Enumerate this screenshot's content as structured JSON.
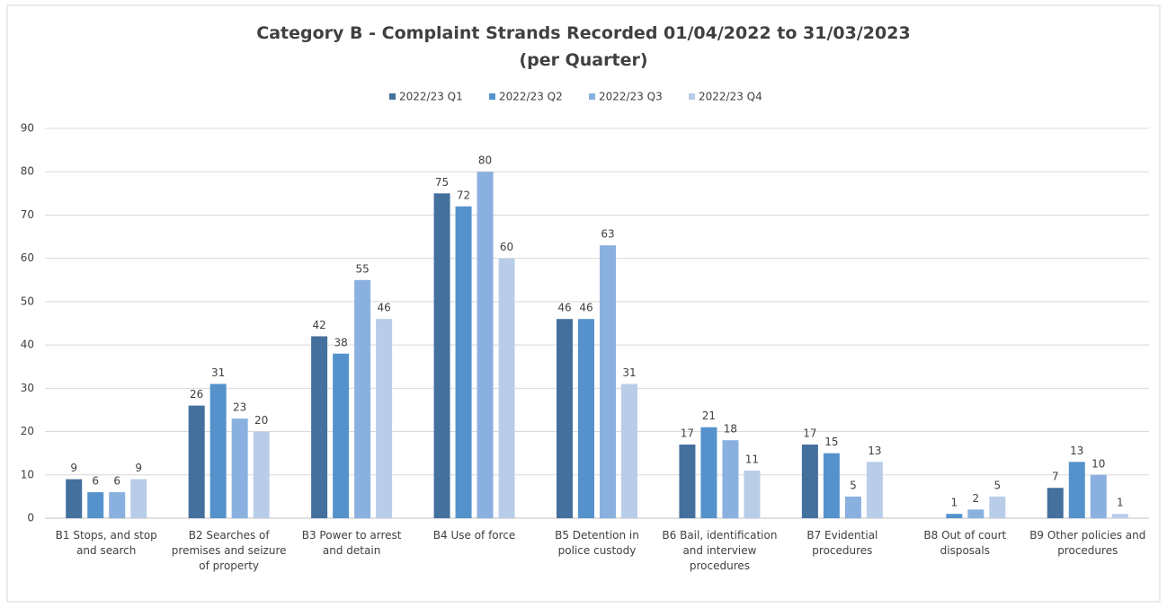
{
  "chart_data": {
    "type": "bar",
    "title": "Category B - Complaint Strands Recorded 01/04/2022 to 31/03/2023",
    "subtitle": "(per Quarter)",
    "categories": [
      "B1 Stops, and stop and search",
      "B2 Searches of premises and seizure of property",
      "B3 Power to arrest and detain",
      "B4 Use of force",
      "B5 Detention in police custody",
      "B6 Bail, identification and interview procedures",
      "B7 Evidential procedures",
      "B8 Out of court disposals",
      "B9 Other policies and procedures"
    ],
    "series": [
      {
        "name": "2022/23 Q1",
        "color": "#44709d",
        "values": [
          9,
          26,
          42,
          75,
          46,
          17,
          17,
          null,
          7
        ]
      },
      {
        "name": "2022/23 Q2",
        "color": "#5592cc",
        "values": [
          6,
          31,
          38,
          72,
          46,
          21,
          15,
          1,
          13
        ]
      },
      {
        "name": "2022/23 Q3",
        "color": "#8ab0df",
        "values": [
          6,
          23,
          55,
          80,
          63,
          18,
          5,
          2,
          10
        ]
      },
      {
        "name": "2022/23 Q4",
        "color": "#b9cde9",
        "values": [
          9,
          20,
          46,
          60,
          31,
          11,
          13,
          5,
          1
        ]
      }
    ],
    "ylim": [
      0,
      90
    ],
    "yticks": [
      0,
      10,
      20,
      30,
      40,
      50,
      60,
      70,
      80,
      90
    ],
    "grid": true,
    "legend": "top"
  }
}
